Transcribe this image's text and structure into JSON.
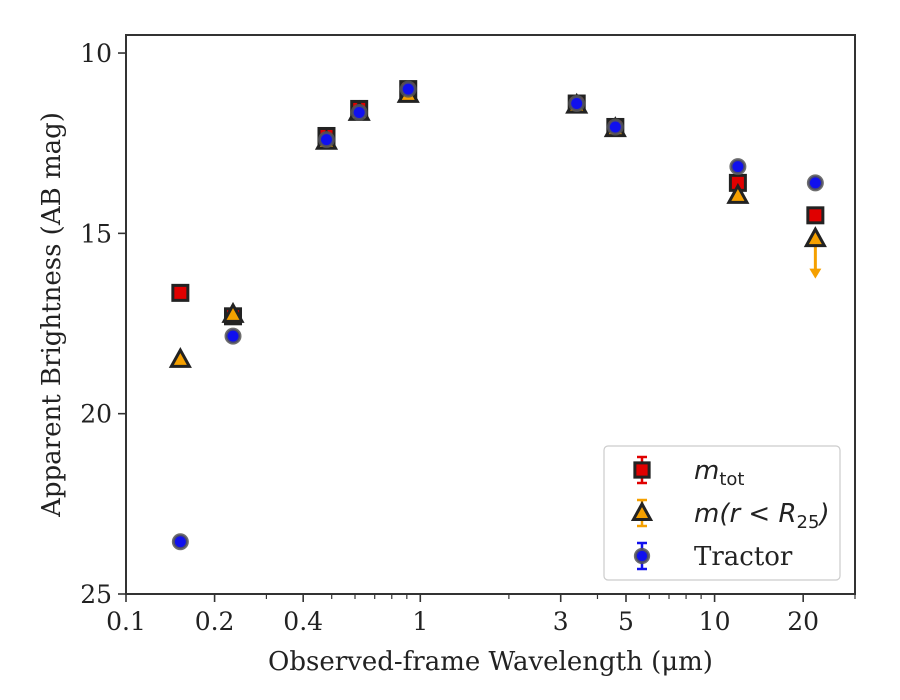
{
  "chart_data": {
    "type": "scatter",
    "xlabel": "Observed-frame Wavelength (μm)",
    "ylabel": "Apparent Brightness (AB mag)",
    "xscale": "log",
    "xlim": [
      0.1,
      30
    ],
    "ylim": [
      25,
      9.5
    ],
    "y_inverted": true,
    "x_ticks": [
      {
        "value": 0.1,
        "label": "0.1"
      },
      {
        "value": 0.2,
        "label": "0.2"
      },
      {
        "value": 0.4,
        "label": "0.4"
      },
      {
        "value": 1,
        "label": "1"
      },
      {
        "value": 3,
        "label": "3"
      },
      {
        "value": 5,
        "label": "5"
      },
      {
        "value": 10,
        "label": "10"
      },
      {
        "value": 20,
        "label": "20"
      }
    ],
    "y_ticks": [
      {
        "value": 10,
        "label": "10"
      },
      {
        "value": 15,
        "label": "15"
      },
      {
        "value": 20,
        "label": "20"
      },
      {
        "value": 25,
        "label": "25"
      }
    ],
    "grid": false,
    "legend_position": "lower-right",
    "series": [
      {
        "name": "m_tot",
        "label_main": "m",
        "label_sub": "tot",
        "marker": "square",
        "color": "#e00000",
        "edge_color": "#222222",
        "points": [
          {
            "x": 0.153,
            "y": 16.65
          },
          {
            "x": 0.231,
            "y": 17.3
          },
          {
            "x": 0.48,
            "y": 12.3
          },
          {
            "x": 0.62,
            "y": 11.55
          },
          {
            "x": 0.91,
            "y": 11.0
          },
          {
            "x": 3.4,
            "y": 11.4
          },
          {
            "x": 4.6,
            "y": 12.05
          },
          {
            "x": 12.0,
            "y": 13.6
          },
          {
            "x": 22.0,
            "y": 14.5
          }
        ]
      },
      {
        "name": "m(r < R25)",
        "label_main": "m(r < R",
        "label_sub": "25",
        "label_tail": ")",
        "marker": "triangle",
        "color": "#f5a000",
        "edge_color": "#222222",
        "points": [
          {
            "x": 0.153,
            "y": 18.5
          },
          {
            "x": 0.231,
            "y": 17.25
          },
          {
            "x": 0.48,
            "y": 12.45
          },
          {
            "x": 0.62,
            "y": 11.65
          },
          {
            "x": 0.91,
            "y": 11.15
          },
          {
            "x": 3.4,
            "y": 11.45
          },
          {
            "x": 4.6,
            "y": 12.1
          },
          {
            "x": 12.0,
            "y": 13.95
          },
          {
            "x": 22.0,
            "y": 15.15,
            "upper_limit_to": 16.2
          }
        ]
      },
      {
        "name": "Tractor",
        "label_main": "Tractor",
        "marker": "circle",
        "color": "#1010ee",
        "edge_color": "#555555",
        "points": [
          {
            "x": 0.153,
            "y": 23.55
          },
          {
            "x": 0.231,
            "y": 17.85
          },
          {
            "x": 0.48,
            "y": 12.4
          },
          {
            "x": 0.62,
            "y": 11.65
          },
          {
            "x": 0.91,
            "y": 11.0
          },
          {
            "x": 3.4,
            "y": 11.4
          },
          {
            "x": 4.6,
            "y": 12.05
          },
          {
            "x": 12.0,
            "y": 13.15
          },
          {
            "x": 22.0,
            "y": 13.6
          }
        ]
      }
    ]
  }
}
